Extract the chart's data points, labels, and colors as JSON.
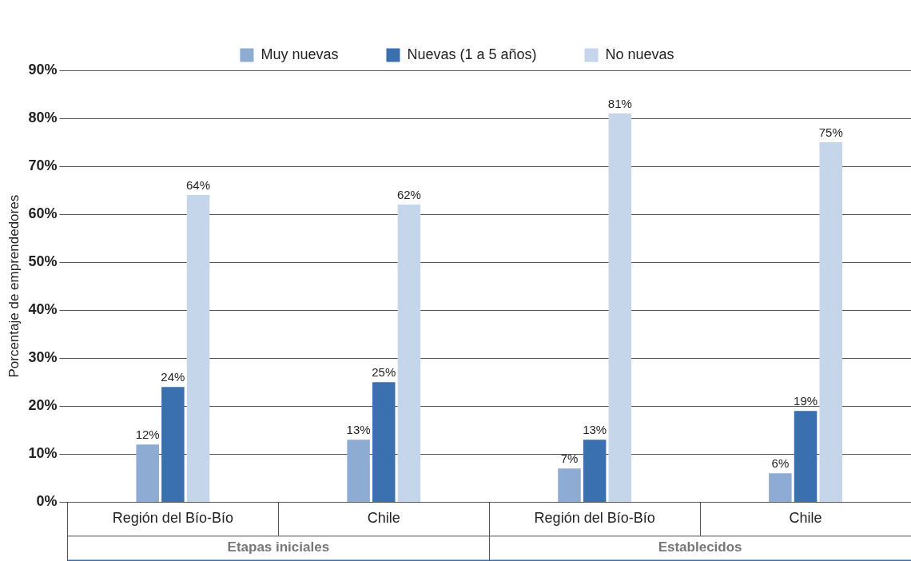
{
  "chart_data": {
    "type": "bar",
    "categories": [
      "Región del Bío-Bío",
      "Chile",
      "Región del Bío-Bío",
      "Chile"
    ],
    "annotations": [
      "Etapas iniciales",
      "Establecidos"
    ],
    "ylabel": "Porcentaje de emprendedores",
    "ylim": [
      0,
      90
    ],
    "yticks": [
      {
        "value": 0,
        "label": "0%"
      },
      {
        "value": 10,
        "label": "10%"
      },
      {
        "value": 20,
        "label": "20%"
      },
      {
        "value": 30,
        "label": "30%"
      },
      {
        "value": 40,
        "label": "40%"
      },
      {
        "value": 50,
        "label": "50%"
      },
      {
        "value": 60,
        "label": "60%"
      },
      {
        "value": 70,
        "label": "70%"
      },
      {
        "value": 80,
        "label": "80%"
      },
      {
        "value": 90,
        "label": "90%"
      }
    ],
    "grid": "y",
    "legend": "top",
    "series": [
      {
        "name": "Muy nuevas",
        "color": "#8eabd3",
        "values": [
          12,
          13,
          7,
          6
        ],
        "value_labels": [
          "12%",
          "13%",
          "7%",
          "6%"
        ]
      },
      {
        "name": "Nuevas (1 a 5 años)",
        "color": "#3a6fb0",
        "values": [
          24,
          25,
          13,
          19
        ],
        "value_labels": [
          "24%",
          "25%",
          "13%",
          "19%"
        ]
      },
      {
        "name": "No nuevas",
        "color": "#c5d5ea",
        "values": [
          64,
          62,
          81,
          75
        ],
        "value_labels": [
          "64%",
          "62%",
          "81%",
          "75%"
        ]
      }
    ]
  }
}
